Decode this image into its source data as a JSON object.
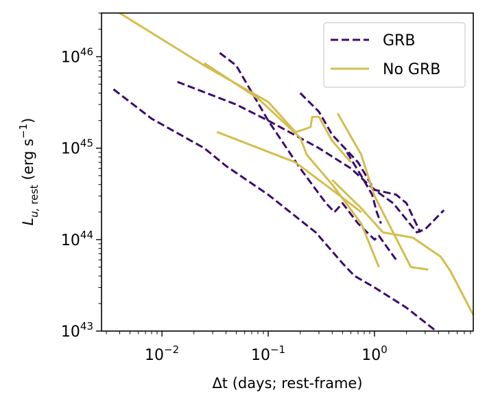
{
  "chart_data": {
    "type": "line",
    "xlabel": "Δt (days; rest-frame)",
    "ylabel": "L_{u, rest} (erg s^-1)",
    "xscale": "log",
    "yscale": "log",
    "xlim": [
      0.0027,
      8.5
    ],
    "ylim": [
      1e+43,
      3e+46
    ],
    "xticks": [
      {
        "value": 0.01,
        "label": "10^-2"
      },
      {
        "value": 0.1,
        "label": "10^-1"
      },
      {
        "value": 1,
        "label": "10^0"
      }
    ],
    "yticks": [
      {
        "value": 1e+43,
        "label": "10^43"
      },
      {
        "value": 1e+44,
        "label": "10^44"
      },
      {
        "value": 1e+45,
        "label": "10^45"
      },
      {
        "value": 1e+46,
        "label": "10^46"
      }
    ],
    "grid": false,
    "legend": {
      "position": "top-right",
      "entries": [
        {
          "label": "GRB",
          "color": "#3b0a6e",
          "style": "dashed"
        },
        {
          "label": "No GRB",
          "color": "#d4bd4c",
          "style": "solid"
        }
      ]
    },
    "series": [
      {
        "group": "GRB",
        "color": "#3b0a6e",
        "style": "dashed",
        "points": [
          [
            0.0035,
            4.4e+45
          ],
          [
            0.008,
            2.1e+45
          ],
          [
            0.025,
            1e+45
          ],
          [
            0.04,
            6.4e+44
          ],
          [
            0.1,
            3.1e+44
          ],
          [
            0.28,
            1.2e+44
          ],
          [
            0.5,
            5.5e+43
          ],
          [
            0.65,
            4e+43
          ],
          [
            1.0,
            3e+43
          ],
          [
            2.0,
            1.8e+43
          ],
          [
            3.8,
            1e+43
          ]
        ]
      },
      {
        "group": "GRB",
        "color": "#3b0a6e",
        "style": "dashed",
        "points": [
          [
            0.014,
            5.3e+45
          ],
          [
            0.05,
            3e+45
          ],
          [
            0.1,
            2e+45
          ],
          [
            0.3,
            1e+45
          ],
          [
            0.6,
            6e+44
          ],
          [
            1.0,
            3.5e+44
          ],
          [
            1.5,
            2.5e+44
          ],
          [
            2.5,
            1.2e+44
          ],
          [
            3.0,
            1.3e+44
          ],
          [
            4.5,
            2.1e+44
          ]
        ]
      },
      {
        "group": "GRB",
        "color": "#3b0a6e",
        "style": "dashed",
        "points": [
          [
            0.035,
            1.1e+46
          ],
          [
            0.05,
            8e+45
          ],
          [
            0.1,
            2e+45
          ],
          [
            0.2,
            6e+44
          ],
          [
            0.35,
            2.5e+44
          ],
          [
            0.42,
            2e+44
          ],
          [
            0.5,
            2.5e+44
          ],
          [
            0.7,
            1.5e+44
          ],
          [
            1.0,
            1e+44
          ],
          [
            1.1,
            1.1e+44
          ],
          [
            1.6,
            6e+43
          ]
        ]
      },
      {
        "group": "GRB",
        "color": "#3b0a6e",
        "style": "dashed",
        "points": [
          [
            0.2,
            4e+45
          ],
          [
            0.3,
            2.5e+45
          ],
          [
            0.4,
            1.4e+45
          ],
          [
            0.7,
            7e+44
          ],
          [
            1.0,
            3.5e+44
          ],
          [
            1.6,
            3.1e+44
          ],
          [
            2.0,
            2.5e+44
          ],
          [
            2.7,
            1.2e+44
          ]
        ]
      },
      {
        "group": "GRB",
        "color": "#3b0a6e",
        "style": "dashed",
        "points": [
          [
            0.55,
            9e+44
          ],
          [
            0.75,
            5e+44
          ],
          [
            0.95,
            3.1e+44
          ],
          [
            1.05,
            2e+44
          ],
          [
            1.15,
            1.5e+44
          ]
        ]
      },
      {
        "group": "No GRB",
        "color": "#d4bd4c",
        "style": "solid",
        "points": [
          [
            0.004,
            3e+46
          ],
          [
            0.025,
            8e+45
          ],
          [
            0.1,
            3.2e+45
          ],
          [
            0.18,
            1.5e+45
          ],
          [
            0.2,
            1.55e+45
          ],
          [
            0.25,
            1.7e+45
          ],
          [
            0.26,
            2.2e+45
          ],
          [
            0.3,
            2.2e+45
          ],
          [
            0.4,
            1.2e+45
          ],
          [
            0.6,
            7e+44
          ]
        ]
      },
      {
        "group": "No GRB",
        "color": "#d4bd4c",
        "style": "solid",
        "points": [
          [
            0.033,
            1.5e+45
          ],
          [
            0.18,
            7e+44
          ],
          [
            0.4,
            3.5e+44
          ],
          [
            0.75,
            2e+44
          ]
        ]
      },
      {
        "group": "No GRB",
        "color": "#d4bd4c",
        "style": "solid",
        "points": [
          [
            0.025,
            8.5e+45
          ],
          [
            0.08,
            3.5e+45
          ],
          [
            0.2,
            1.3e+45
          ],
          [
            0.23,
            8.5e+44
          ],
          [
            0.4,
            4e+44
          ],
          [
            0.75,
            1.5e+44
          ],
          [
            1.1,
            5e+43
          ]
        ]
      },
      {
        "group": "No GRB",
        "color": "#d4bd4c",
        "style": "solid",
        "points": [
          [
            0.45,
            2.4e+45
          ],
          [
            0.75,
            8.5e+44
          ],
          [
            1.0,
            3e+44
          ],
          [
            2.2,
            5e+43
          ],
          [
            3.2,
            4.7e+43
          ]
        ]
      },
      {
        "group": "No GRB",
        "color": "#d4bd4c",
        "style": "solid",
        "points": [
          [
            0.4,
            4.5e+44
          ],
          [
            0.75,
            2.2e+44
          ],
          [
            1.2,
            1.2e+44
          ],
          [
            2.3,
            1.05e+44
          ],
          [
            4.2,
            6.5e+43
          ],
          [
            5.2,
            4.5e+43
          ],
          [
            8.5,
            1.5e+43
          ]
        ]
      }
    ]
  }
}
